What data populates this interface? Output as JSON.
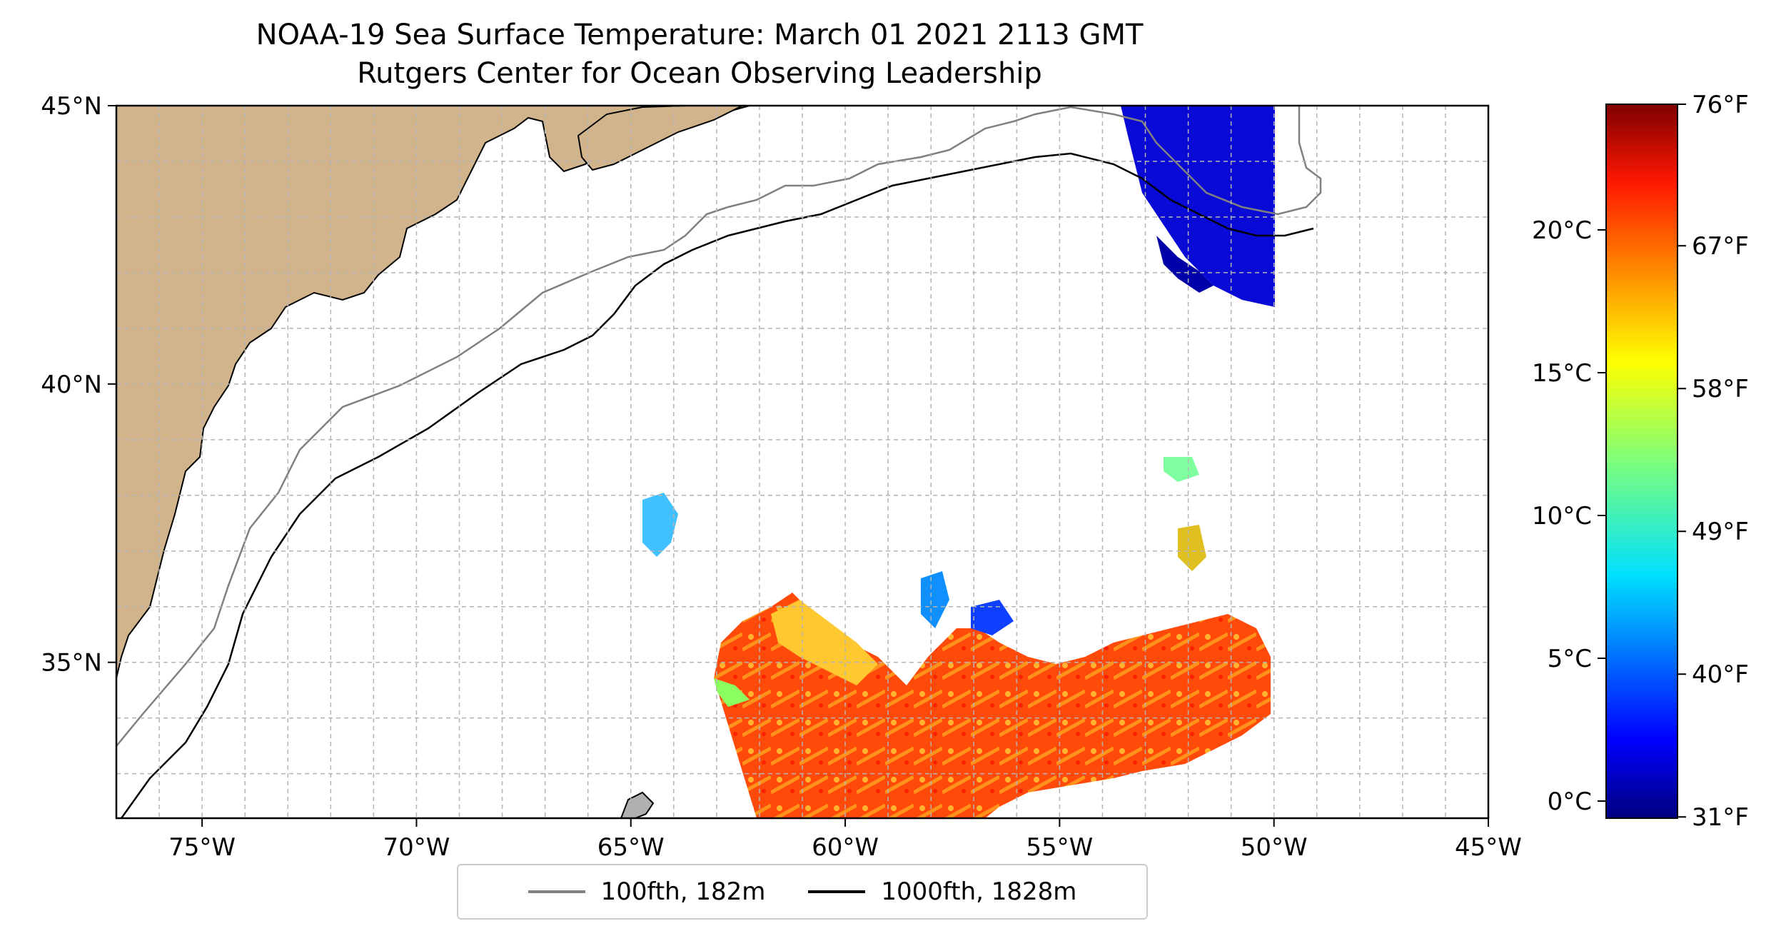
{
  "title": {
    "line1": "NOAA-19 Sea Surface Temperature: March 01 2021 2113 GMT",
    "line2": "Rutgers Center for Ocean Observing Leadership"
  },
  "map": {
    "lon_range": [
      -77,
      -45
    ],
    "lat_range": [
      32.2,
      45
    ],
    "lon_ticks": [
      {
        "value": -75,
        "label": "75°W"
      },
      {
        "value": -70,
        "label": "70°W"
      },
      {
        "value": -65,
        "label": "65°W"
      },
      {
        "value": -60,
        "label": "60°W"
      },
      {
        "value": -55,
        "label": "55°W"
      },
      {
        "value": -50,
        "label": "50°W"
      },
      {
        "value": -45,
        "label": "45°W"
      }
    ],
    "lat_ticks": [
      {
        "value": 45,
        "label": "45°N"
      },
      {
        "value": 40,
        "label": "40°N"
      },
      {
        "value": 35,
        "label": "35°N"
      }
    ],
    "grid": "dashed",
    "colors": {
      "land": "#d2b48c",
      "inland_water": "#a4c2e8",
      "isobath_100fth": "#808080",
      "isobath_1000fth": "#000000"
    }
  },
  "legend": {
    "placement": "bottom-center",
    "entries": [
      {
        "label": "100fth, 182m",
        "color": "#808080"
      },
      {
        "label": "1000fth, 1828m",
        "color": "#000000"
      }
    ]
  },
  "colorbar": {
    "colormap": "jet",
    "celsius_range": [
      -0.6,
      24.4
    ],
    "celsius_ticks": [
      {
        "value": 0,
        "label": "0°C"
      },
      {
        "value": 5,
        "label": "5°C"
      },
      {
        "value": 10,
        "label": "10°C"
      },
      {
        "value": 15,
        "label": "15°C"
      },
      {
        "value": 20,
        "label": "20°C"
      }
    ],
    "fahrenheit_ticks": [
      {
        "value": 31,
        "label": "31°F"
      },
      {
        "value": 40,
        "label": "40°F"
      },
      {
        "value": 49,
        "label": "49°F"
      },
      {
        "value": 58,
        "label": "58°F"
      },
      {
        "value": 67,
        "label": "67°F"
      },
      {
        "value": 76,
        "label": "76°F"
      }
    ]
  }
}
